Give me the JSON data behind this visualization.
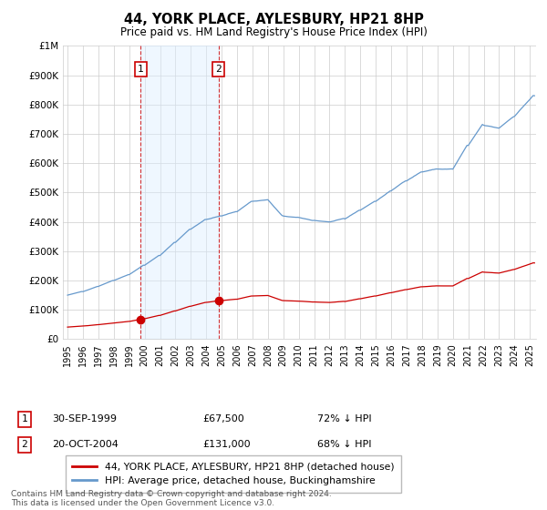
{
  "title": "44, YORK PLACE, AYLESBURY, HP21 8HP",
  "subtitle": "Price paid vs. HM Land Registry's House Price Index (HPI)",
  "legend_line1": "44, YORK PLACE, AYLESBURY, HP21 8HP (detached house)",
  "legend_line2": "HPI: Average price, detached house, Buckinghamshire",
  "footnote": "Contains HM Land Registry data © Crown copyright and database right 2024.\nThis data is licensed under the Open Government Licence v3.0.",
  "transaction1_label": "1",
  "transaction1_date": "30-SEP-1999",
  "transaction1_price": "£67,500",
  "transaction1_hpi": "72% ↓ HPI",
  "transaction2_label": "2",
  "transaction2_date": "20-OCT-2004",
  "transaction2_price": "£131,000",
  "transaction2_hpi": "68% ↓ HPI",
  "sale_color": "#cc0000",
  "hpi_color": "#6699cc",
  "hpi_fill_color": "#ddeeff",
  "vline_color": "#cc0000",
  "ylim": [
    0,
    1000000
  ],
  "yticks": [
    0,
    100000,
    200000,
    300000,
    400000,
    500000,
    600000,
    700000,
    800000,
    900000,
    1000000
  ],
  "sale1_x": 1999.75,
  "sale1_y": 67500,
  "sale2_x": 2004.79,
  "sale2_y": 131000,
  "xmin": 1995.0,
  "xmax": 2025.4
}
